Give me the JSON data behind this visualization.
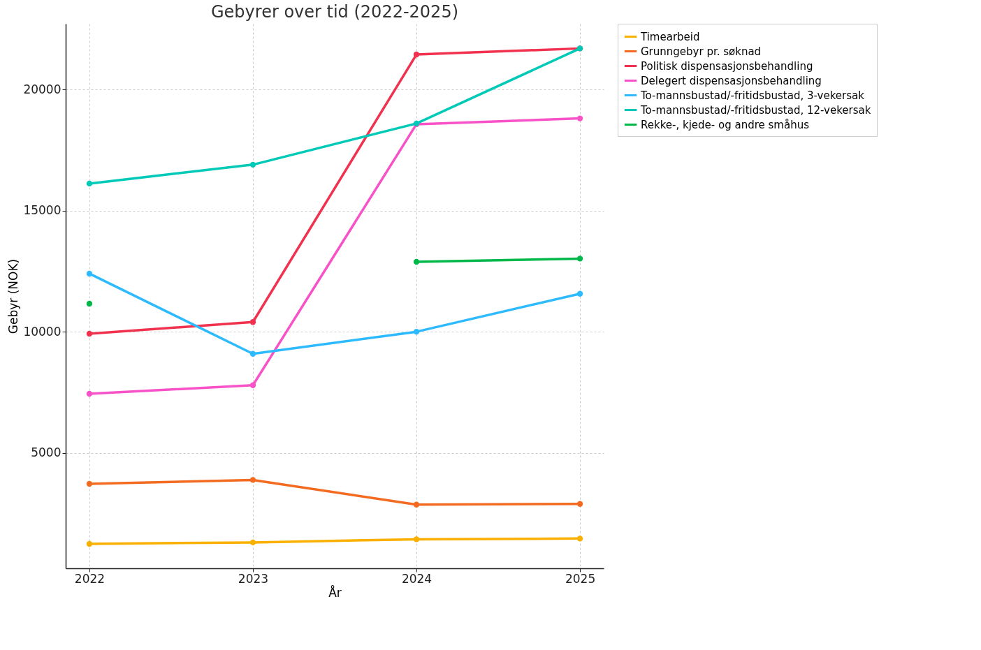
{
  "chart_data": {
    "type": "line",
    "title": "Gebyrer over tid (2022-2025)",
    "xlabel": "År",
    "ylabel": "Gebyr (NOK)",
    "x": [
      2022,
      2023,
      2024,
      2025
    ],
    "xlim": [
      2021.855,
      2025.145
    ],
    "xticks": [
      2022,
      2023,
      2024,
      2025
    ],
    "ylim": [
      230,
      22720
    ],
    "yticks": [
      5000,
      10000,
      15000,
      20000
    ],
    "grid": true,
    "legend": "top right",
    "marker": "circle",
    "line_style": "solid",
    "series": [
      {
        "name": "Timearbeid",
        "color": "#f9b000",
        "values": [
          1240,
          1300,
          1430,
          1460
        ]
      },
      {
        "name": "Grunngebyr pr. søknad",
        "color": "#f26b21",
        "values": [
          3720,
          3880,
          2860,
          2890
        ]
      },
      {
        "name": "Politisk dispensasjonsbehandling",
        "color": "#f0324f",
        "values": [
          9920,
          10400,
          21450,
          21700
        ]
      },
      {
        "name": "Delegert dispensasjonsbehandling",
        "color": "#f752c7",
        "values": [
          7440,
          7790,
          18570,
          18810
        ]
      },
      {
        "name": "To-mannsbustad/-fritidsbustad, 3-vekersak",
        "color": "#2ebaff",
        "values": [
          12400,
          9090,
          10000,
          11570
        ]
      },
      {
        "name": "To-mannsbustad/-fritidsbustad, 12-vekersak",
        "color": "#00c9b8",
        "values": [
          16120,
          16900,
          18600,
          21700
        ]
      },
      {
        "name": "Rekke-, kjede- og andre småhus",
        "color": "#00b84a",
        "values": [
          11160,
          null,
          12890,
          13020
        ]
      }
    ]
  }
}
